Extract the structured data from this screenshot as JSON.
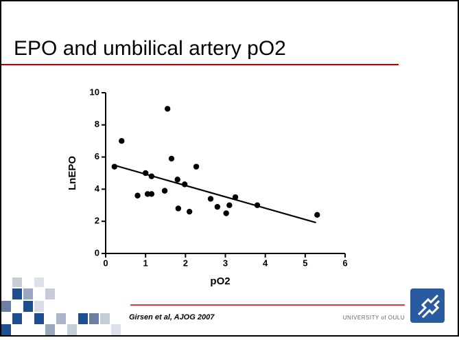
{
  "slide": {
    "title": "EPO and umbilical artery pO2",
    "citation": "Girsen et al, AJOG 2007",
    "institution": "UNIVERSITY of OULU"
  },
  "chart_data": {
    "type": "scatter",
    "x_label": "pO2",
    "y_label": "LnEPO",
    "x": [
      0.22,
      0.4,
      1.55,
      1.65,
      1.0,
      1.15,
      0.8,
      1.05,
      1.15,
      1.8,
      1.98,
      1.48,
      1.82,
      2.1,
      2.27,
      2.63,
      2.8,
      3.1,
      3.02,
      3.25,
      3.8,
      5.3
    ],
    "values": [
      5.4,
      7.0,
      9.0,
      5.9,
      5.0,
      4.8,
      3.6,
      3.7,
      3.7,
      4.6,
      4.3,
      3.9,
      2.8,
      2.6,
      5.4,
      3.4,
      2.9,
      3.0,
      2.5,
      3.5,
      3.0,
      2.4
    ],
    "color": "#000000",
    "fit": {
      "x": [
        0.24,
        5.27
      ],
      "values": [
        5.47,
        1.92
      ]
    },
    "xlim": [
      0,
      6
    ],
    "ylim": [
      0,
      10
    ],
    "xticks": [
      0,
      1,
      2,
      3,
      4,
      5,
      6
    ],
    "yticks": [
      0,
      2,
      4,
      6,
      8,
      10
    ],
    "grid": false
  }
}
